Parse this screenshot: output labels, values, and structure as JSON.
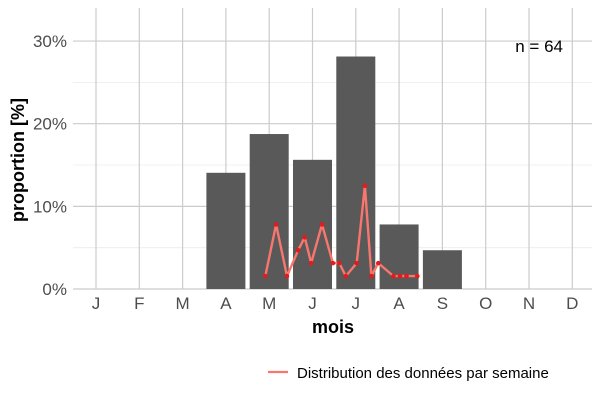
{
  "chart_data": {
    "type": "bar",
    "categories": [
      "J",
      "F",
      "M",
      "A",
      "M",
      "J",
      "J",
      "A",
      "S",
      "O",
      "N",
      "D"
    ],
    "values": [
      0,
      0,
      0,
      14.06,
      18.75,
      15.63,
      28.13,
      7.81,
      4.69,
      0,
      0,
      0
    ],
    "xlabel": "mois",
    "ylabel": "proportion [%]",
    "ylim": [
      0,
      34
    ],
    "yticks": [
      0,
      10,
      20,
      30
    ],
    "ytick_labels": [
      "0%",
      "10%",
      "20%",
      "30%"
    ],
    "grid": true,
    "annotation": "n = 64",
    "bar_color": "#595959",
    "weekly_series": {
      "name": "Distribution des données par semaine",
      "type": "line",
      "line_color": "#f8766d",
      "point_color": "#e41a1c",
      "x": [
        3.91,
        4.16,
        4.41,
        4.67,
        4.82,
        4.97,
        5.22,
        5.47,
        5.62,
        5.77,
        6.02,
        6.21,
        6.36,
        6.52,
        6.87,
        7.02,
        7.17,
        7.42
      ],
      "y": [
        1.56,
        7.81,
        1.56,
        4.69,
        6.25,
        3.13,
        7.81,
        3.13,
        3.13,
        1.56,
        3.13,
        12.5,
        1.56,
        3.13,
        1.56,
        1.56,
        1.56,
        1.56
      ]
    },
    "legend_position": "bottom-right"
  }
}
